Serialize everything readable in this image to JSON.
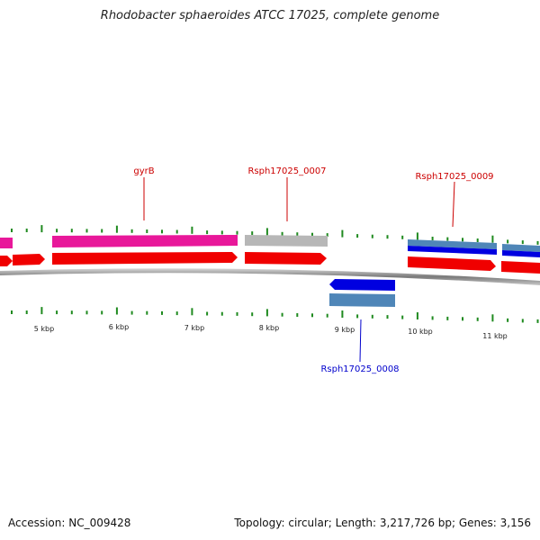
{
  "title": "Rhodobacter sphaeroides ATCC 17025, complete genome",
  "footer": {
    "accession": "Accession: NC_009428",
    "stats": "Topology: circular; Length: 3,217,726 bp; Genes: 3,156"
  },
  "colors": {
    "cds_forward": "#f00000",
    "cds_highlight": "#e8189a",
    "cds_grey": "#b0b0b0",
    "cds_reverse": "#0000e0",
    "cds_steel": "#4f86b8",
    "tick": "#1f8a1f",
    "backbone": "#8a8a8a",
    "label_red": "#cc0000",
    "label_blue": "#0000cc"
  },
  "kbp_labels": [
    "5 kbp",
    "6 kbp",
    "7 kbp",
    "8 kbp",
    "9 kbp",
    "10 kbp",
    "11 kbp"
  ],
  "gene_labels": [
    {
      "name": "gyrB",
      "strand": "forward"
    },
    {
      "name": "Rsph17025_0007",
      "strand": "forward"
    },
    {
      "name": "Rsph17025_0009",
      "strand": "forward"
    },
    {
      "name": "Rsph17025_0008",
      "strand": "reverse"
    }
  ]
}
